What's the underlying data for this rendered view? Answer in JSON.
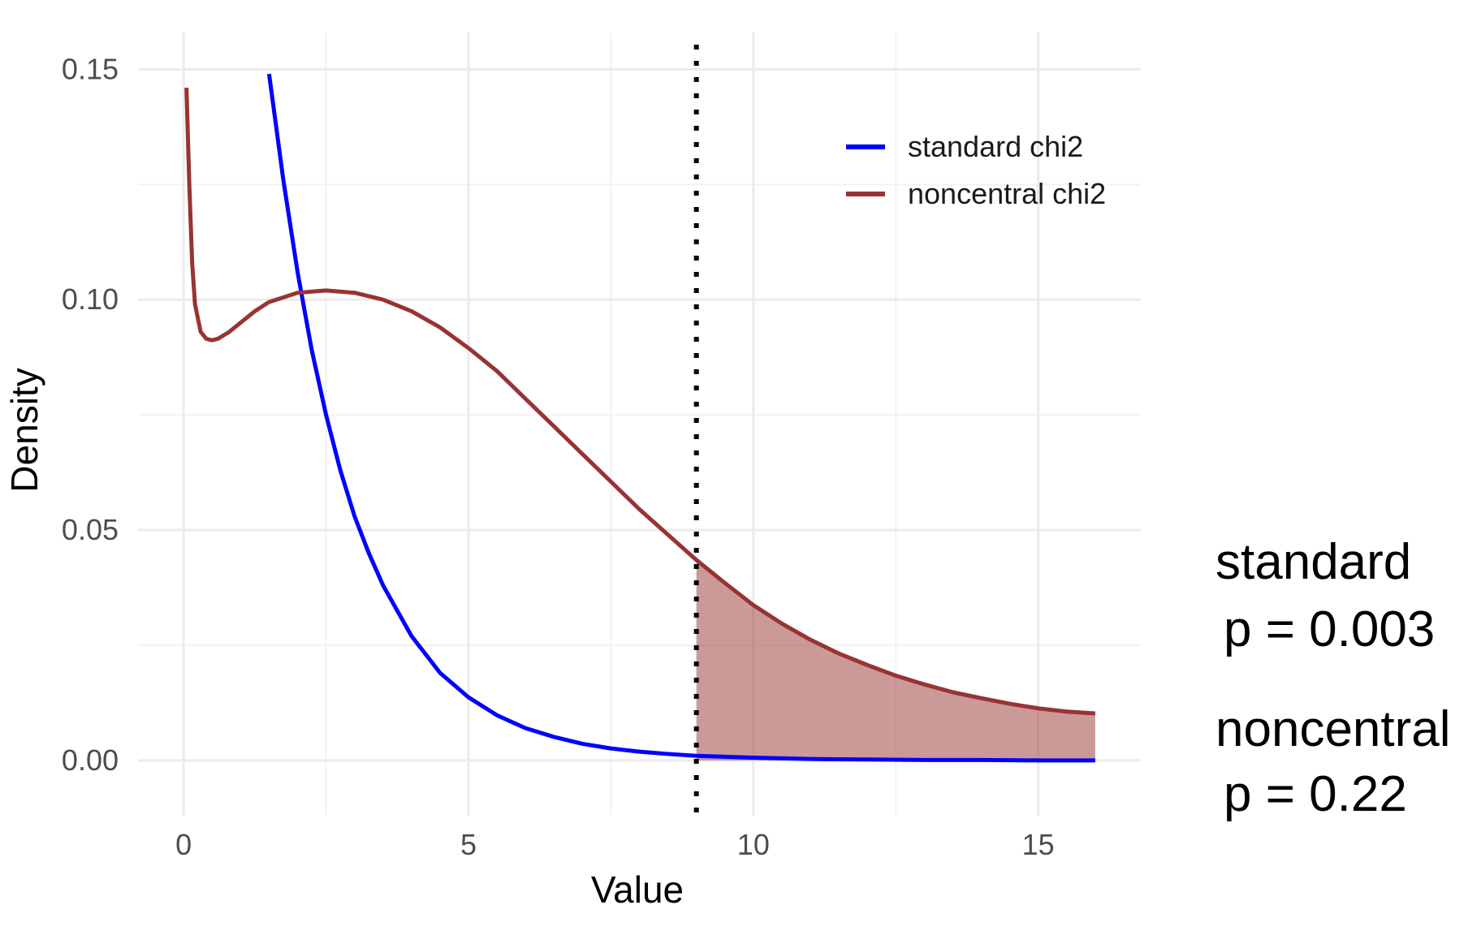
{
  "chart_data": {
    "type": "line",
    "xlabel": "Value",
    "ylabel": "Density",
    "xlim": [
      -0.8,
      16.8
    ],
    "ylim": [
      -0.012,
      0.158
    ],
    "x_ticks": [
      0,
      5,
      10,
      15
    ],
    "x_tick_labels": [
      "0",
      "5",
      "10",
      "15"
    ],
    "y_ticks": [
      0.0,
      0.05,
      0.1,
      0.15
    ],
    "y_tick_labels": [
      "0.00",
      "0.05",
      "0.10",
      "0.15"
    ],
    "grid": true,
    "legend_position": "top-right",
    "critical_value": 9,
    "shaded_region": {
      "from": 9,
      "to": 16,
      "series": "noncentral chi2"
    },
    "series": [
      {
        "name": "standard chi2",
        "color": "#0000ff",
        "x": [
          1.5,
          1.75,
          2.0,
          2.25,
          2.5,
          2.75,
          3.0,
          3.25,
          3.5,
          4.0,
          4.5,
          5.0,
          5.5,
          6.0,
          6.5,
          7.0,
          7.5,
          8.0,
          8.5,
          9.0,
          10.0,
          11.0,
          12.0,
          13.0,
          14.0,
          15.0,
          16.0
        ],
        "y": [
          0.149,
          0.126,
          0.106,
          0.089,
          0.075,
          0.063,
          0.053,
          0.045,
          0.038,
          0.027,
          0.019,
          0.0137,
          0.0098,
          0.007,
          0.0051,
          0.0036,
          0.0026,
          0.0019,
          0.0014,
          0.001,
          0.0006,
          0.0003,
          0.0002,
          0.0001,
          0.0001,
          0.0,
          0.0
        ]
      },
      {
        "name": "noncentral chi2",
        "color": "#993333",
        "x": [
          0.05,
          0.1,
          0.15,
          0.2,
          0.3,
          0.4,
          0.5,
          0.6,
          0.8,
          1.0,
          1.25,
          1.5,
          2.0,
          2.5,
          3.0,
          3.5,
          4.0,
          4.5,
          5.0,
          5.5,
          6.0,
          6.5,
          7.0,
          7.5,
          8.0,
          8.5,
          9.0,
          9.5,
          10.0,
          10.5,
          11.0,
          11.5,
          12.0,
          12.5,
          13.0,
          13.5,
          14.0,
          14.5,
          15.0,
          15.5,
          16.0
        ],
        "y": [
          0.146,
          0.125,
          0.108,
          0.099,
          0.093,
          0.0915,
          0.0912,
          0.0915,
          0.093,
          0.095,
          0.0975,
          0.0995,
          0.1015,
          0.102,
          0.1015,
          0.1,
          0.0975,
          0.094,
          0.0895,
          0.0845,
          0.0785,
          0.0725,
          0.0665,
          0.0605,
          0.0545,
          0.049,
          0.0435,
          0.0385,
          0.0337,
          0.0297,
          0.0262,
          0.0232,
          0.0207,
          0.0184,
          0.0165,
          0.0148,
          0.0135,
          0.0123,
          0.0113,
          0.0106,
          0.0102
        ]
      }
    ]
  },
  "annotations": {
    "standard_label": "standard",
    "standard_p": "p = 0.003",
    "noncentral_label": "noncentral",
    "noncentral_p": "p = 0.22"
  }
}
